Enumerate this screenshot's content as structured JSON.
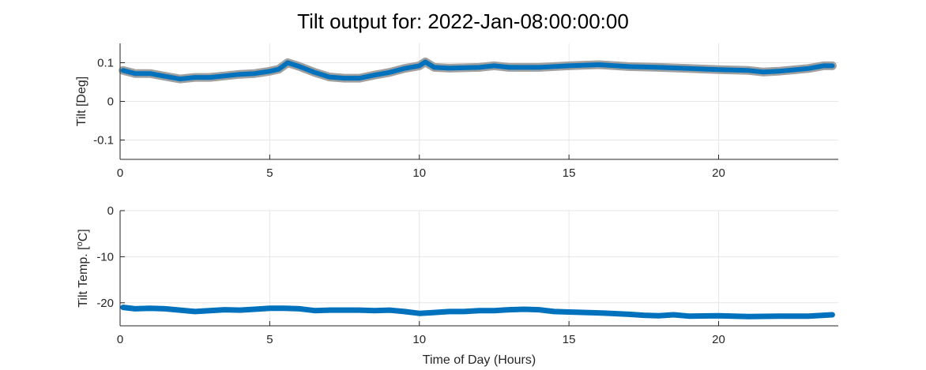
{
  "title": "Tilt output for: 2022-Jan-08:00:00:00",
  "chart_data": [
    {
      "type": "line",
      "xlabel": "",
      "ylabel": "Tilt [Deg]",
      "xlim": [
        0,
        24
      ],
      "ylim": [
        -0.15,
        0.15
      ],
      "xticks": [
        0,
        5,
        10,
        15,
        20
      ],
      "yticks": [
        -0.1,
        0,
        0.1
      ],
      "xtick_labels": [
        "0",
        "5",
        "10",
        "15",
        "20"
      ],
      "ytick_labels": [
        "-0.1",
        "0",
        "0.1"
      ],
      "grid": true,
      "color": "#0072BD",
      "band_color": "#A0A0A0",
      "x": [
        0.1,
        0.5,
        1.0,
        1.5,
        2.0,
        2.5,
        3.0,
        3.5,
        4.0,
        4.5,
        5.0,
        5.3,
        5.6,
        6.0,
        6.5,
        7.0,
        7.5,
        8.0,
        8.5,
        9.0,
        9.5,
        10.0,
        10.2,
        10.5,
        11.0,
        12.0,
        12.5,
        13.0,
        14.0,
        15.0,
        16.0,
        17.0,
        18.0,
        19.0,
        20.0,
        21.0,
        21.5,
        22.0,
        23.0,
        23.5,
        23.8
      ],
      "y": [
        0.08,
        0.072,
        0.072,
        0.065,
        0.058,
        0.062,
        0.062,
        0.066,
        0.07,
        0.072,
        0.078,
        0.083,
        0.1,
        0.09,
        0.075,
        0.063,
        0.06,
        0.06,
        0.068,
        0.075,
        0.085,
        0.092,
        0.102,
        0.088,
        0.086,
        0.088,
        0.092,
        0.088,
        0.088,
        0.092,
        0.095,
        0.09,
        0.088,
        0.085,
        0.082,
        0.08,
        0.076,
        0.078,
        0.085,
        0.092,
        0.092
      ]
    },
    {
      "type": "line",
      "xlabel": "Time of Day (Hours)",
      "ylabel": "Tilt Temp. [",
      "ylabel_sup": "o",
      "ylabel_tail": "C]",
      "xlim": [
        0,
        24
      ],
      "ylim": [
        -25,
        0
      ],
      "xticks": [
        0,
        5,
        10,
        15,
        20
      ],
      "yticks": [
        -20,
        -10,
        0
      ],
      "xtick_labels": [
        "0",
        "5",
        "10",
        "15",
        "20"
      ],
      "ytick_labels": [
        "-20",
        "-10",
        "0"
      ],
      "grid": true,
      "color": "#0072BD",
      "x": [
        0.1,
        0.5,
        1.0,
        1.5,
        2.0,
        2.5,
        3.0,
        3.5,
        4.0,
        4.5,
        5.0,
        5.5,
        6.0,
        6.5,
        7.0,
        7.5,
        8.0,
        8.5,
        9.0,
        9.5,
        10.0,
        10.5,
        11.0,
        11.5,
        12.0,
        12.5,
        13.0,
        13.5,
        14.0,
        14.5,
        15.0,
        16.0,
        17.0,
        17.5,
        18.0,
        18.5,
        19.0,
        20.0,
        21.0,
        22.0,
        23.0,
        23.8
      ],
      "y": [
        -21.0,
        -21.3,
        -21.2,
        -21.3,
        -21.6,
        -21.9,
        -21.7,
        -21.5,
        -21.6,
        -21.4,
        -21.2,
        -21.2,
        -21.3,
        -21.7,
        -21.6,
        -21.6,
        -21.6,
        -21.7,
        -21.6,
        -21.9,
        -22.3,
        -22.1,
        -21.9,
        -21.9,
        -21.7,
        -21.7,
        -21.5,
        -21.4,
        -21.5,
        -21.9,
        -22.0,
        -22.2,
        -22.5,
        -22.7,
        -22.8,
        -22.6,
        -22.9,
        -22.8,
        -23.0,
        -22.9,
        -22.9,
        -22.6
      ]
    }
  ]
}
